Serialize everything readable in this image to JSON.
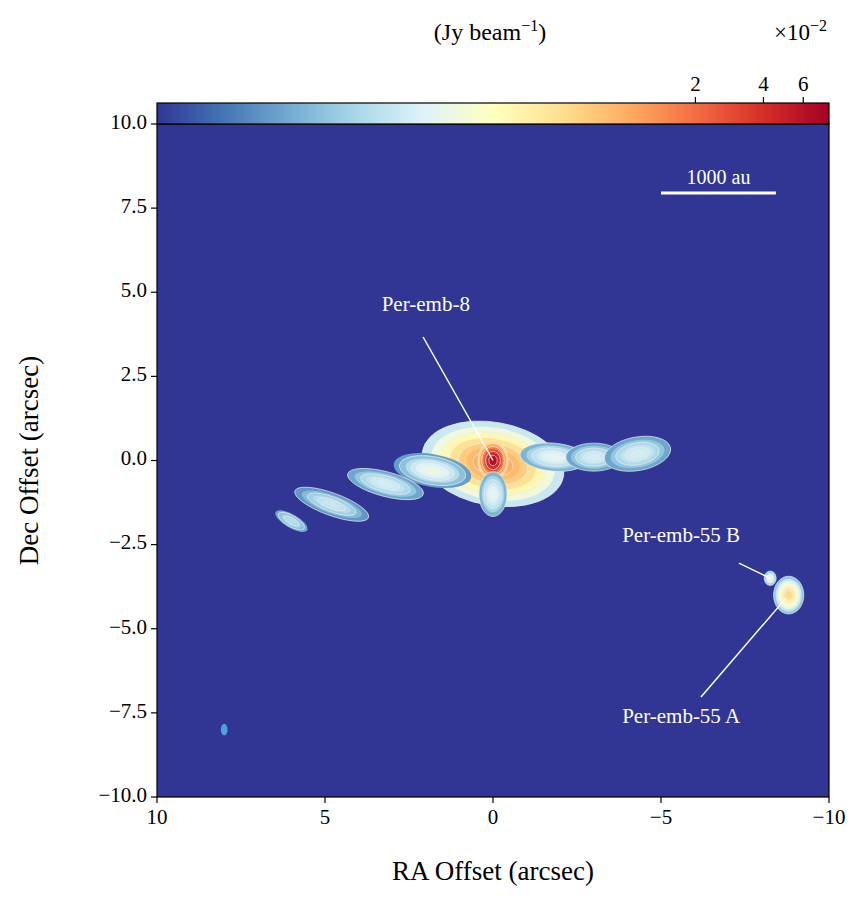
{
  "chart_data": {
    "type": "image",
    "xlabel": "RA Offset (arcsec)",
    "ylabel": "Dec Offset (arcsec)",
    "xlim": [
      10,
      -10
    ],
    "ylim": [
      -10,
      10
    ],
    "xticks": [
      10,
      5,
      0,
      {
        "value": -5,
        "label": "−5"
      },
      {
        "value": -10,
        "label": "−10"
      }
    ],
    "yticks": [
      {
        "value": 10,
        "label": "10.0"
      },
      {
        "value": 7.5,
        "label": "7.5"
      },
      {
        "value": 5,
        "label": "5.0"
      },
      {
        "value": 2.5,
        "label": "2.5"
      },
      {
        "value": 0,
        "label": "0.0"
      },
      {
        "value": -2.5,
        "label": "−2.5"
      },
      {
        "value": -5,
        "label": "−5.0"
      },
      {
        "value": -7.5,
        "label": "−7.5"
      },
      {
        "value": -10,
        "label": "−10.0"
      }
    ],
    "colorbar": {
      "label": [
        "(Jy beam",
        "−1",
        ")"
      ],
      "multiplier": [
        "×10",
        "−2"
      ],
      "range": [
        0.0083,
        7.8
      ],
      "ticks": [
        2,
        4,
        6
      ],
      "log": true
    },
    "components": [
      {
        "x": 0,
        "y": -0.1,
        "a": 0.95,
        "b": 0.55,
        "pa": 100,
        "peak": 1.2
      },
      {
        "x": 0,
        "y": 0,
        "a": 0.25,
        "b": 0.2,
        "pa": 0,
        "peak": 7.0
      },
      {
        "x": 1.8,
        "y": -0.3,
        "a": 0.6,
        "b": 0.25,
        "pa": 100,
        "peak": 0.18
      },
      {
        "x": 3.2,
        "y": -0.7,
        "a": 0.7,
        "b": 0.22,
        "pa": 105,
        "peak": 0.12
      },
      {
        "x": 4.8,
        "y": -1.3,
        "a": 0.7,
        "b": 0.2,
        "pa": 110,
        "peak": 0.1
      },
      {
        "x": 6.0,
        "y": -1.8,
        "a": 0.4,
        "b": 0.15,
        "pa": 120,
        "peak": 0.08
      },
      {
        "x": -1.8,
        "y": 0.1,
        "a": 0.6,
        "b": 0.25,
        "pa": 95,
        "peak": 0.15
      },
      {
        "x": -3.0,
        "y": 0.1,
        "a": 0.5,
        "b": 0.25,
        "pa": 90,
        "peak": 0.12
      },
      {
        "x": -4.3,
        "y": 0.2,
        "a": 0.6,
        "b": 0.3,
        "pa": 80,
        "peak": 0.12
      },
      {
        "x": 0,
        "y": -1.0,
        "a": 0.4,
        "b": 0.25,
        "pa": 0,
        "peak": 0.15
      },
      {
        "x": -8.8,
        "y": -4.0,
        "a": 0.25,
        "b": 0.2,
        "pa": 0,
        "peak": 0.6
      },
      {
        "x": -8.25,
        "y": -3.5,
        "a": 0.12,
        "b": 0.1,
        "pa": 0,
        "peak": 0.2
      }
    ],
    "sources": [
      {
        "name": "Per-emb-8",
        "x": 0,
        "y": 0,
        "label_x": 2.0,
        "label_y": 4.6,
        "line_from": [
          2.08,
          3.67
        ]
      },
      {
        "name": "Per-emb-55 B",
        "x": -8.25,
        "y": -3.5,
        "label_x": -5.6,
        "label_y": -2.27,
        "line_from": [
          -7.32,
          -3.05
        ]
      },
      {
        "name": "Per-emb-55 A",
        "x": -8.72,
        "y": -4.09,
        "label_x": -5.6,
        "label_y": -7.65,
        "line_from": [
          -6.19,
          -7.03
        ]
      }
    ],
    "scale_bar": {
      "label": "1000 au",
      "x": -5,
      "y": 7.95,
      "length": 3.42
    },
    "beam": {
      "x": 8,
      "y": -8,
      "major": 0.35,
      "minor": 0.2,
      "pa": 0
    }
  }
}
